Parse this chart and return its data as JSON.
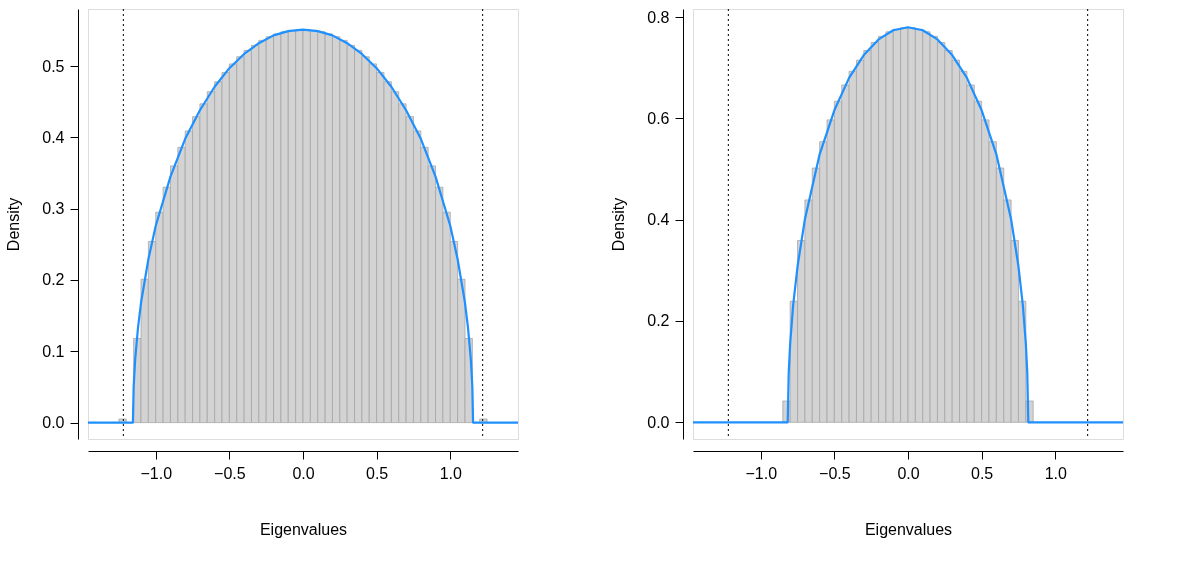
{
  "chart_data": [
    {
      "type": "histogram",
      "xlabel": "Eigenvalues",
      "ylabel": "Density",
      "color": "#d3d3d3",
      "grid": false,
      "bins": [
        -1.25,
        -1.2,
        -1.15,
        -1.1,
        -1.05,
        -1.0,
        -0.95,
        -0.9,
        -0.85,
        -0.8,
        -0.75,
        -0.7,
        -0.65,
        -0.6,
        -0.55,
        -0.5,
        -0.45,
        -0.4,
        -0.35,
        -0.3,
        -0.25,
        -0.2,
        -0.15,
        -0.1,
        -0.05,
        0.0,
        0.05,
        0.1,
        0.15,
        0.2,
        0.25,
        0.3,
        0.35,
        0.4,
        0.45,
        0.5,
        0.55,
        0.6,
        0.65,
        0.7,
        0.75,
        0.8,
        0.85,
        0.9,
        0.95,
        1.0,
        1.05,
        1.1,
        1.15,
        1.2,
        1.25
      ],
      "values": [
        0.005,
        null,
        0.118,
        0.201,
        0.254,
        0.295,
        0.33,
        0.36,
        0.386,
        0.409,
        0.429,
        0.447,
        0.464,
        0.478,
        0.491,
        0.503,
        0.513,
        0.522,
        0.529,
        0.536,
        0.541,
        0.545,
        0.548,
        0.55,
        0.551,
        0.551,
        0.55,
        0.548,
        0.545,
        0.541,
        0.536,
        0.529,
        0.522,
        0.513,
        0.503,
        0.491,
        0.478,
        0.464,
        0.447,
        0.429,
        0.409,
        0.386,
        0.36,
        0.33,
        0.295,
        0.254,
        0.201,
        0.118,
        null,
        0.005
      ],
      "series": [
        {
          "type": "line",
          "color": "#1e90ff",
          "x": [
            -1.46,
            -1.155,
            -1.15,
            -1.14,
            -1.12,
            -1.1,
            -1.05,
            -1.0,
            -0.9,
            -0.8,
            -0.7,
            -0.6,
            -0.5,
            -0.4,
            -0.3,
            -0.2,
            -0.1,
            0.0,
            0.1,
            0.2,
            0.3,
            0.4,
            0.5,
            0.6,
            0.7,
            0.8,
            0.9,
            1.0,
            1.05,
            1.1,
            1.12,
            1.14,
            1.15,
            1.155,
            1.46
          ],
          "values": [
            0,
            0,
            0.05,
            0.088,
            0.134,
            0.168,
            0.229,
            0.276,
            0.345,
            0.398,
            0.438,
            0.471,
            0.497,
            0.517,
            0.532,
            0.543,
            0.549,
            0.551,
            0.549,
            0.543,
            0.532,
            0.517,
            0.497,
            0.471,
            0.438,
            0.398,
            0.345,
            0.276,
            0.229,
            0.168,
            0.134,
            0.088,
            0.05,
            0,
            0
          ]
        }
      ],
      "ref_lines": [
        {
          "axis": "x",
          "value": -1.22,
          "line_style": "dotted",
          "color": "#000000"
        },
        {
          "axis": "x",
          "value": 1.22,
          "line_style": "dotted",
          "color": "#000000"
        }
      ],
      "xlim": [
        -1.46,
        1.46
      ],
      "ylim": [
        -0.023,
        0.58
      ],
      "xticks": [
        {
          "value": -1.0,
          "label": "−1.0"
        },
        {
          "value": -0.5,
          "label": "−0.5"
        },
        {
          "value": 0.0,
          "label": "0.0"
        },
        0.5,
        {
          "value": 1.0,
          "label": "1.0"
        }
      ],
      "yticks": [
        {
          "value": 0.0,
          "label": "0.0"
        },
        0.1,
        0.2,
        0.3,
        0.4,
        0.5
      ]
    },
    {
      "type": "histogram",
      "xlabel": "Eigenvalues",
      "ylabel": "Density",
      "color": "#d3d3d3",
      "grid": false,
      "bins": [
        -0.85,
        -0.8,
        -0.75,
        -0.7,
        -0.65,
        -0.6,
        -0.55,
        -0.5,
        -0.45,
        -0.4,
        -0.35,
        -0.3,
        -0.25,
        -0.2,
        -0.15,
        -0.1,
        -0.05,
        0.0,
        0.05,
        0.1,
        0.15,
        0.2,
        0.25,
        0.3,
        0.35,
        0.4,
        0.45,
        0.5,
        0.55,
        0.6,
        0.65,
        0.7,
        0.75,
        0.8,
        0.85
      ],
      "values": [
        0.042,
        0.239,
        0.359,
        0.439,
        0.502,
        0.554,
        0.597,
        0.634,
        0.666,
        0.693,
        0.715,
        0.734,
        0.75,
        0.762,
        0.771,
        0.776,
        0.779,
        0.779,
        0.776,
        0.771,
        0.762,
        0.75,
        0.734,
        0.715,
        0.693,
        0.666,
        0.634,
        0.597,
        0.554,
        0.502,
        0.439,
        0.359,
        0.239,
        0.042
      ],
      "series": [
        {
          "type": "line",
          "color": "#1e90ff",
          "x": [
            -1.46,
            -0.817,
            -0.81,
            -0.8,
            -0.78,
            -0.75,
            -0.7,
            -0.6,
            -0.5,
            -0.4,
            -0.3,
            -0.2,
            -0.1,
            0.0,
            0.1,
            0.2,
            0.3,
            0.4,
            0.5,
            0.6,
            0.7,
            0.75,
            0.78,
            0.8,
            0.81,
            0.817,
            1.46
          ],
          "values": [
            0,
            0,
            0.098,
            0.156,
            0.231,
            0.308,
            0.401,
            0.529,
            0.616,
            0.68,
            0.725,
            0.756,
            0.774,
            0.78,
            0.774,
            0.756,
            0.725,
            0.68,
            0.616,
            0.529,
            0.401,
            0.308,
            0.231,
            0.156,
            0.098,
            0,
            0
          ]
        }
      ],
      "ref_lines": [
        {
          "axis": "x",
          "value": -1.22,
          "line_style": "dotted",
          "color": "#000000"
        },
        {
          "axis": "x",
          "value": 1.22,
          "line_style": "dotted",
          "color": "#000000"
        }
      ],
      "xlim": [
        -1.46,
        1.46
      ],
      "ylim": [
        -0.033,
        0.816
      ],
      "xticks": [
        {
          "value": -1.0,
          "label": "−1.0"
        },
        {
          "value": -0.5,
          "label": "−0.5"
        },
        {
          "value": 0.0,
          "label": "0.0"
        },
        0.5,
        {
          "value": 1.0,
          "label": "1.0"
        }
      ],
      "yticks": [
        {
          "value": 0.0,
          "label": "0.0"
        },
        0.2,
        0.4,
        0.6,
        0.8
      ]
    }
  ]
}
